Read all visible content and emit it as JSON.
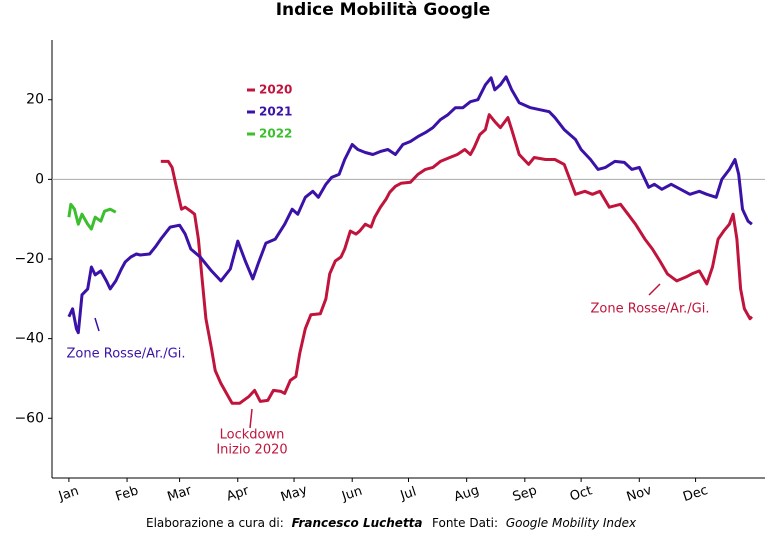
{
  "chart_data": {
    "type": "line",
    "title": "Indice Mobilità Google",
    "xlim": [
      -8,
      372
    ],
    "ylim": [
      -75,
      35
    ],
    "xticks": [
      {
        "value": 1,
        "label": "Jan"
      },
      {
        "value": 32,
        "label": "Feb"
      },
      {
        "value": 60,
        "label": "Mar"
      },
      {
        "value": 91,
        "label": "Apr"
      },
      {
        "value": 121,
        "label": "May"
      },
      {
        "value": 152,
        "label": "Jun"
      },
      {
        "value": 182,
        "label": "Jul"
      },
      {
        "value": 213,
        "label": "Aug"
      },
      {
        "value": 244,
        "label": "Sep"
      },
      {
        "value": 274,
        "label": "Oct"
      },
      {
        "value": 305,
        "label": "Nov"
      },
      {
        "value": 335,
        "label": "Dec"
      }
    ],
    "yticks": [
      {
        "value": 20,
        "label": "20"
      },
      {
        "value": 0,
        "label": "0"
      },
      {
        "value": -20,
        "label": "−20"
      },
      {
        "value": -40,
        "label": "−40"
      },
      {
        "value": -60,
        "label": "−60"
      }
    ],
    "grid": false,
    "zero_line": true,
    "legend": "upper left",
    "series": [
      {
        "name": "2020",
        "color": "#c0143c",
        "x": [
          50,
          54,
          56,
          58,
          61,
          63,
          66,
          68,
          70,
          72,
          74,
          77,
          79,
          82,
          85,
          88,
          92,
          97,
          100,
          103,
          107,
          110,
          114,
          116,
          119,
          122,
          124,
          127,
          130,
          135,
          138,
          140,
          143,
          146,
          148,
          151,
          154,
          156,
          159,
          162,
          164,
          167,
          170,
          172,
          175,
          178,
          183,
          187,
          191,
          195,
          199,
          204,
          208,
          212,
          215,
          217,
          220,
          223,
          225,
          228,
          231,
          235,
          237,
          241,
          246,
          249,
          255,
          260,
          265,
          268,
          271,
          276,
          280,
          284,
          289,
          295,
          299,
          303,
          308,
          312,
          316,
          320,
          325,
          330,
          333,
          337,
          341,
          344,
          347,
          350,
          353,
          355,
          357,
          359,
          361,
          364,
          365
        ],
        "values": [
          4.5,
          4.5,
          3,
          -1.25,
          -7.5,
          -7,
          -8,
          -8.75,
          -15,
          -25,
          -35,
          -42.5,
          -48,
          -51.25,
          -53.75,
          -56.25,
          -56.25,
          -54.5,
          -53,
          -55.75,
          -55.5,
          -53,
          -53.25,
          -53.75,
          -50.5,
          -49.5,
          -43.75,
          -37.5,
          -34,
          -33.75,
          -30,
          -23.75,
          -20.5,
          -19.5,
          -17.5,
          -13,
          -13.75,
          -13,
          -11.25,
          -12,
          -9.5,
          -7,
          -5,
          -3.25,
          -1.75,
          -1,
          -0.75,
          1.25,
          2.5,
          3,
          4.5,
          5.5,
          6.25,
          7.5,
          6.25,
          8,
          11.25,
          12.5,
          16.25,
          14.5,
          13,
          15.5,
          12.5,
          6.25,
          3.75,
          5.5,
          5,
          5,
          3.75,
          0,
          -3.75,
          -3,
          -3.75,
          -3,
          -7,
          -6.25,
          -8.75,
          -11.25,
          -15,
          -17.5,
          -20.5,
          -23.75,
          -25.5,
          -24.5,
          -23.75,
          -23,
          -26.25,
          -22,
          -15,
          -13,
          -11.25,
          -8.75,
          -15,
          -27.5,
          -32.5,
          -35,
          -34.5
        ]
      },
      {
        "name": "2021",
        "color": "#3a12a8",
        "x": [
          1,
          3,
          5,
          6,
          8,
          11,
          13,
          15,
          18,
          21,
          23,
          26,
          29,
          31,
          34,
          37,
          39,
          44,
          47,
          50,
          55,
          60,
          63,
          66,
          71,
          77,
          82,
          87,
          91,
          95,
          99,
          102,
          106,
          111,
          116,
          120,
          123,
          127,
          131,
          134,
          138,
          141,
          145,
          148,
          152,
          155,
          159,
          163,
          167,
          171,
          175,
          179,
          183,
          187,
          191,
          195,
          199,
          203,
          207,
          211,
          215,
          219,
          223,
          226,
          228,
          231,
          234,
          237,
          241,
          247,
          252,
          257,
          260,
          265,
          271,
          274,
          279,
          283,
          287,
          292,
          297,
          301,
          305,
          310,
          313,
          317,
          322,
          327,
          332,
          337,
          341,
          346,
          349,
          353,
          356,
          358,
          360,
          363,
          365
        ],
        "values": [
          -34.5,
          -32.5,
          -37.5,
          -38.5,
          -29,
          -27.5,
          -22,
          -24,
          -23,
          -25.5,
          -27.5,
          -25.5,
          -22.5,
          -20.75,
          -19.5,
          -18.75,
          -19,
          -18.75,
          -17,
          -15,
          -12,
          -11.5,
          -13.75,
          -17.5,
          -19.5,
          -23,
          -25.5,
          -22.5,
          -15.5,
          -20.5,
          -25,
          -21,
          -16,
          -15,
          -11.25,
          -7.5,
          -8.75,
          -4.5,
          -3,
          -4.5,
          -1.25,
          0.5,
          1.25,
          5,
          8.75,
          7.5,
          6.75,
          6.25,
          7,
          7.5,
          6.25,
          8.75,
          9.5,
          10.75,
          11.75,
          13,
          15,
          16.25,
          18,
          18,
          19.5,
          20,
          23.75,
          25.5,
          22.5,
          23.75,
          25.75,
          22.5,
          19.25,
          18,
          17.5,
          17,
          15.5,
          12.5,
          10,
          7.5,
          5,
          2.5,
          3,
          4.5,
          4.25,
          2.5,
          3,
          -2,
          -1.25,
          -2.5,
          -1.25,
          -2.5,
          -3.75,
          -3,
          -3.75,
          -4.5,
          0,
          2.5,
          5,
          1.25,
          -7.5,
          -10.5,
          -11.25
        ]
      },
      {
        "name": "2022",
        "color": "#3cbf2e",
        "x": [
          1,
          2,
          4,
          6,
          8,
          11,
          13,
          15,
          18,
          20,
          23,
          26
        ],
        "values": [
          -9.5,
          -6.25,
          -7.5,
          -11.25,
          -8.75,
          -11.25,
          -12.5,
          -9.5,
          -10.5,
          -8,
          -7.5,
          -8.25
        ]
      }
    ],
    "annotations": [
      {
        "text": "Zone Rosse/Ar./Gi.",
        "color": "#3a12a8"
      },
      {
        "text": "Lockdown",
        "color": "#c0143c"
      },
      {
        "text": "Inizio 2020",
        "color": "#c0143c"
      },
      {
        "text": "Zone Rosse/Ar./Gi.",
        "color": "#c0143c"
      }
    ],
    "footer": {
      "credit_label": "Elaborazione a cura di:",
      "credit_name": "Francesco Luchetta",
      "source_label": "Fonte Dati:",
      "source_name": "Google Mobility Index"
    }
  }
}
